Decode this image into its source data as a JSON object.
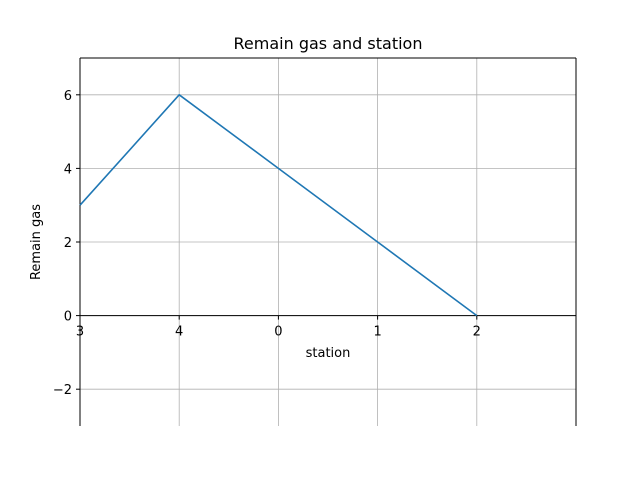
{
  "chart_data": {
    "type": "line",
    "title": "Remain gas and station",
    "xlabel": "station",
    "ylabel": "Remain gas",
    "categories": [
      "3",
      "4",
      "0",
      "1",
      "2"
    ],
    "x": [
      0,
      1,
      2,
      3,
      4
    ],
    "series": [
      {
        "values": [
          3,
          6,
          4,
          2,
          0
        ],
        "color": "#1f77b4"
      }
    ],
    "xlim": [
      0,
      5
    ],
    "ylim": [
      -3,
      7
    ],
    "yticks": [
      -2,
      0,
      2,
      4,
      6
    ],
    "ytick_labels": [
      "−2",
      "0",
      "2",
      "4",
      "6"
    ],
    "grid": true,
    "x_axis_position": "zero"
  }
}
